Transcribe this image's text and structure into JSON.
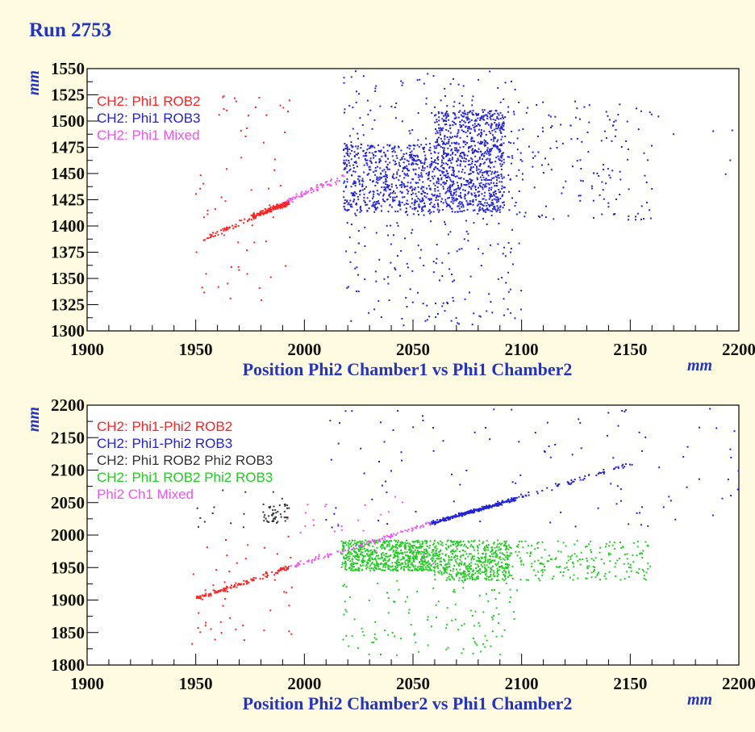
{
  "title": "Run 2753",
  "chart_data": [
    {
      "type": "scatter",
      "xlabel": "Position Phi2 Chamber1 vs Phi1 Chamber2",
      "x_unit": "mm",
      "y_unit": "mm",
      "xlim": [
        1900,
        2200
      ],
      "ylim": [
        1300,
        1550
      ],
      "x_ticks": [
        "1900",
        "1950",
        "2000",
        "2050",
        "2100",
        "2150",
        "2200"
      ],
      "y_ticks": [
        "1300",
        "1325",
        "1350",
        "1375",
        "1400",
        "1425",
        "1450",
        "1475",
        "1500",
        "1525",
        "1550"
      ],
      "grid": false,
      "legend_position": "top-left",
      "series": [
        {
          "name": "CH2: Phi1 ROB2",
          "color": "#ff2222",
          "clusters": [
            {
              "kind": "line",
              "x0": 1951,
              "y0": 1384,
              "x1": 1976,
              "y1": 1409,
              "n": 45,
              "sx": 0.5,
              "sy": 1.5
            },
            {
              "kind": "line",
              "x0": 1976,
              "y0": 1409,
              "x1": 1993,
              "y1": 1422,
              "n": 170,
              "sx": 0.3,
              "sy": 1.2
            },
            {
              "kind": "box",
              "x0": 1950,
              "x1": 1995,
              "y0": 1325,
              "y1": 1530,
              "n": 60
            }
          ]
        },
        {
          "name": "CH2: Phi1 ROB3",
          "color": "#2222dd",
          "clusters": [
            {
              "kind": "box",
              "x0": 2018,
              "x1": 2060,
              "y0": 1413,
              "y1": 1478,
              "n": 600
            },
            {
              "kind": "box",
              "x0": 2060,
              "x1": 2092,
              "y0": 1413,
              "y1": 1510,
              "n": 900
            },
            {
              "kind": "box",
              "x0": 2018,
              "x1": 2100,
              "y0": 1305,
              "y1": 1548,
              "n": 340
            },
            {
              "kind": "box",
              "x0": 2092,
              "x1": 2160,
              "y0": 1405,
              "y1": 1520,
              "n": 160
            },
            {
              "kind": "box",
              "x0": 2160,
              "x1": 2200,
              "y0": 1430,
              "y1": 1530,
              "n": 6
            }
          ]
        },
        {
          "name": "CH2: Phi1 Mixed",
          "color": "#ee55ee",
          "clusters": [
            {
              "kind": "line",
              "x0": 1990,
              "y0": 1422,
              "x1": 2018,
              "y1": 1447,
              "n": 70,
              "sx": 0.5,
              "sy": 1.5
            }
          ]
        }
      ]
    },
    {
      "type": "scatter",
      "xlabel": "Position Phi2 Chamber2 vs Phi1 Chamber2",
      "x_unit": "mm",
      "y_unit": "mm",
      "xlim": [
        1900,
        2200
      ],
      "ylim": [
        1800,
        2200
      ],
      "x_ticks": [
        "1900",
        "1950",
        "2000",
        "2050",
        "2100",
        "2150",
        "2200"
      ],
      "y_ticks": [
        "1800",
        "1850",
        "1900",
        "1950",
        "2000",
        "2050",
        "2100",
        "2150",
        "2200"
      ],
      "grid": false,
      "legend_position": "top-left",
      "series": [
        {
          "name": "CH2: Phi1-Phi2 ROB2",
          "color": "#ff2222",
          "clusters": [
            {
              "kind": "line",
              "x0": 1950,
              "y0": 1902,
              "x1": 1993,
              "y1": 1950,
              "n": 130,
              "sx": 0.4,
              "sy": 1.6
            },
            {
              "kind": "box",
              "x0": 1948,
              "x1": 1995,
              "y0": 1830,
              "y1": 2000,
              "n": 45
            }
          ]
        },
        {
          "name": "CH2: Phi1-Phi2 ROB3",
          "color": "#2222dd",
          "clusters": [
            {
              "kind": "line",
              "x0": 2058,
              "y0": 2018,
              "x1": 2097,
              "y1": 2055,
              "n": 300,
              "sx": 0.3,
              "sy": 1.3
            },
            {
              "kind": "line",
              "x0": 2097,
              "y0": 2055,
              "x1": 2150,
              "y1": 2110,
              "n": 60,
              "sx": 0.4,
              "sy": 1.6
            },
            {
              "kind": "box",
              "x0": 2010,
              "x1": 2200,
              "y0": 2010,
              "y1": 2195,
              "n": 110
            }
          ]
        },
        {
          "name": "CH2: Phi1 ROB2 Phi2 ROB3",
          "color": "#333333",
          "clusters": [
            {
              "kind": "box",
              "x0": 1981,
              "x1": 1993,
              "y0": 2018,
              "y1": 2048,
              "n": 45
            },
            {
              "kind": "box",
              "x0": 1950,
              "x1": 1995,
              "y0": 2005,
              "y1": 2070,
              "n": 15
            }
          ]
        },
        {
          "name": "CH2: Phi1 ROB2 Phi2 ROB3",
          "color": "#22cc22",
          "clusters": [
            {
              "kind": "box",
              "x0": 2017,
              "x1": 2060,
              "y0": 1945,
              "y1": 1992,
              "n": 700
            },
            {
              "kind": "box",
              "x0": 2060,
              "x1": 2095,
              "y0": 1930,
              "y1": 1992,
              "n": 500
            },
            {
              "kind": "box",
              "x0": 2095,
              "x1": 2160,
              "y0": 1930,
              "y1": 1992,
              "n": 200
            },
            {
              "kind": "box",
              "x0": 2017,
              "x1": 2100,
              "y0": 1815,
              "y1": 1930,
              "n": 120
            }
          ]
        },
        {
          "name": "Phi2 Ch1 Mixed",
          "color": "#ee55ee",
          "clusters": [
            {
              "kind": "line",
              "x0": 1993,
              "y0": 1950,
              "x1": 2058,
              "y1": 2018,
              "n": 110,
              "sx": 0.5,
              "sy": 1.8
            },
            {
              "kind": "box",
              "x0": 1990,
              "x1": 2060,
              "y0": 1955,
              "y1": 2060,
              "n": 25
            }
          ]
        }
      ]
    }
  ]
}
